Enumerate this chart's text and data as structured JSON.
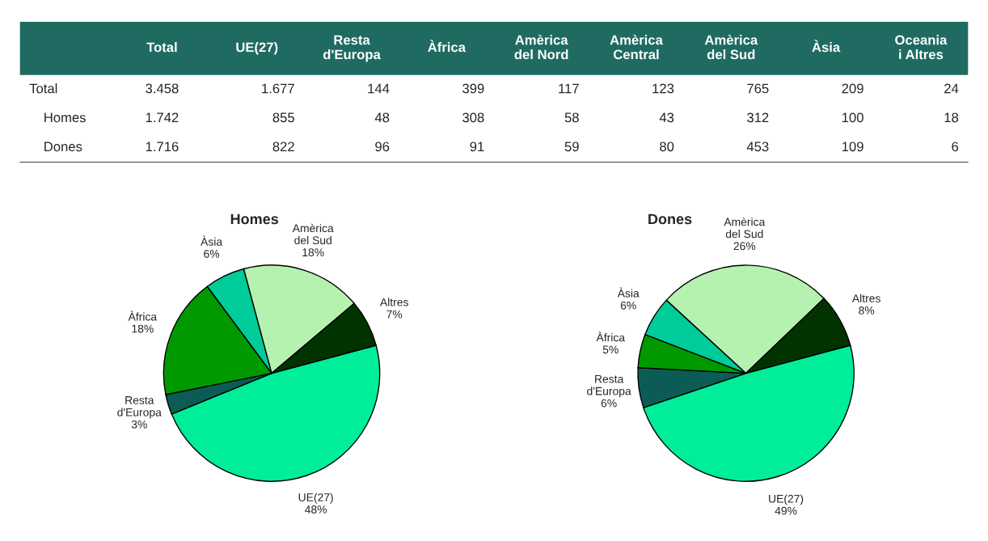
{
  "chart_data": [
    {
      "type": "other",
      "categories": [
        "Total",
        "UE(27)",
        "Resta\nd'Europa",
        "Àfrica",
        "Amèrica\ndel Nord",
        "Amèrica\nCentral",
        "Amèrica\ndel Sud",
        "Àsia",
        "Oceania\ni Altres"
      ],
      "y_categories": [
        "Total",
        "Homes",
        "Dones"
      ],
      "cells": [
        [
          "3.458",
          "1.677",
          "144",
          "399",
          "117",
          "123",
          "765",
          "209",
          "24"
        ],
        [
          "1.742",
          "855",
          "48",
          "308",
          "58",
          "43",
          "312",
          "100",
          "18"
        ],
        [
          "1.716",
          "822",
          "96",
          "91",
          "59",
          "80",
          "453",
          "109",
          "6"
        ]
      ]
    },
    {
      "type": "pie",
      "title": "Homes",
      "categories": [
        "UE(27)",
        "Resta\nd'Europa",
        "Àfrica",
        "Àsia",
        "Amèrica\ndel Sud",
        "Altres"
      ],
      "values": [
        48,
        3,
        18,
        6,
        18,
        7
      ],
      "value_labels": [
        "48%",
        "3%",
        "18%",
        "6%",
        "18%",
        "7%"
      ],
      "colors": [
        "#00ee99",
        "#0b5c55",
        "#009a00",
        "#00cc99",
        "#b5f2b0",
        "#003300"
      ]
    },
    {
      "type": "pie",
      "title": "Dones",
      "categories": [
        "UE(27)",
        "Resta\nd'Europa",
        "Àfrica",
        "Àsia",
        "Amèrica\ndel Sud",
        "Altres"
      ],
      "values": [
        49,
        6,
        5,
        6,
        26,
        8
      ],
      "value_labels": [
        "49%",
        "6%",
        "5%",
        "6%",
        "26%",
        "8%"
      ],
      "colors": [
        "#00ee99",
        "#0b5c55",
        "#009a00",
        "#00cc99",
        "#b5f2b0",
        "#003300"
      ]
    }
  ]
}
